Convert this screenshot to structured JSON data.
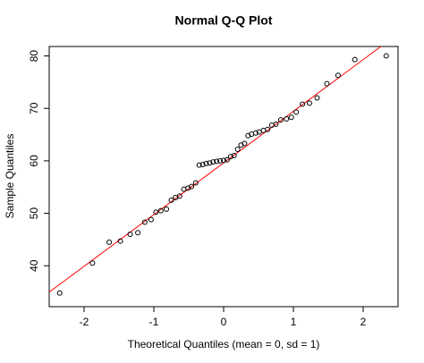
{
  "chart_data": {
    "type": "scatter",
    "title": "Normal Q-Q Plot",
    "x_label": "Theoretical Quantiles (mean = 0, sd = 1)",
    "y_label": "Sample Quantiles",
    "color": "#000000",
    "x": [
      -2.35,
      -1.88,
      -1.64,
      -1.48,
      -1.34,
      -1.23,
      -1.13,
      -1.04,
      -0.97,
      -0.9,
      -0.82,
      -0.75,
      -0.69,
      -0.63,
      -0.57,
      -0.51,
      -0.46,
      -0.4,
      -0.35,
      -0.3,
      -0.25,
      -0.2,
      -0.15,
      -0.1,
      -0.05,
      0,
      0.05,
      0.1,
      0.15,
      0.2,
      0.25,
      0.3,
      0.35,
      0.4,
      0.46,
      0.51,
      0.57,
      0.63,
      0.69,
      0.75,
      0.82,
      0.9,
      0.97,
      1.04,
      1.13,
      1.23,
      1.34,
      1.48,
      1.64,
      1.88,
      2.33
    ],
    "values": [
      34.8,
      40.5,
      44.5,
      44.7,
      46,
      46.3,
      48.3,
      48.8,
      50.2,
      50.5,
      50.8,
      52.5,
      53,
      53.3,
      54.6,
      54.8,
      55.1,
      55.8,
      59.2,
      59.3,
      59.5,
      59.6,
      59.8,
      59.9,
      60,
      60.1,
      60.2,
      60.8,
      61,
      62.2,
      63,
      63.3,
      64.8,
      65.1,
      65.3,
      65.5,
      65.8,
      66,
      66.8,
      67,
      67.8,
      68,
      68.3,
      69.3,
      70.8,
      71,
      72,
      74.7,
      76.3,
      79.3,
      80
    ],
    "reference_line": {
      "intercept": 59.6,
      "slope": 9.85,
      "color": "#ff0000"
    },
    "xlim": [
      -2.5,
      2.5
    ],
    "xticks": [
      -2,
      -1,
      0,
      1,
      2
    ],
    "ylim": [
      32.2,
      81.8
    ],
    "yticks": [
      40,
      50,
      60,
      70,
      80
    ]
  }
}
